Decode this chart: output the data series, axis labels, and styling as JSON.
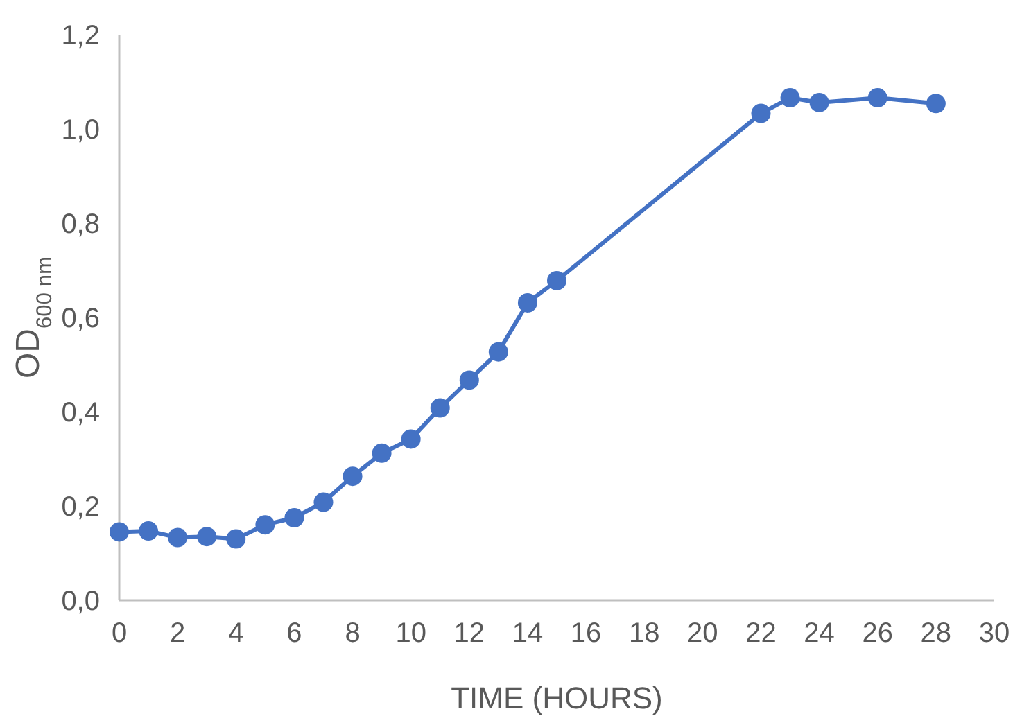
{
  "chart_data": {
    "type": "line",
    "xlabel": "TIME (HOURS)",
    "ylabel": "OD$_{600 nm}$",
    "x": [
      0,
      1,
      2,
      3,
      4,
      5,
      6,
      7,
      8,
      9,
      10,
      11,
      12,
      13,
      14,
      15,
      22,
      23,
      24,
      26,
      28
    ],
    "series": [
      {
        "color": "#4472c4",
        "values": [
          0.145,
          0.147,
          0.133,
          0.135,
          0.13,
          0.16,
          0.175,
          0.208,
          0.263,
          0.312,
          0.342,
          0.408,
          0.467,
          0.527,
          0.631,
          0.678,
          1.033,
          1.066,
          1.056,
          1.066,
          1.054
        ]
      }
    ],
    "xlim": [
      0,
      30
    ],
    "xticks": [
      0,
      2,
      4,
      6,
      8,
      10,
      12,
      14,
      16,
      18,
      20,
      22,
      24,
      26,
      28,
      30
    ],
    "ylim": [
      0,
      1.2
    ],
    "yticks": [
      {
        "value": 0,
        "label": "0,0"
      },
      {
        "value": 0.2,
        "label": "0,2"
      },
      {
        "value": 0.4,
        "label": "0,4"
      },
      {
        "value": 0.6,
        "label": "0,6"
      },
      {
        "value": 0.8,
        "label": "0,8"
      },
      {
        "value": 1.0,
        "label": "1,0"
      },
      {
        "value": 1.2,
        "label": "1,2"
      }
    ],
    "grid": false,
    "marker": "circle",
    "line_style": "solid"
  }
}
